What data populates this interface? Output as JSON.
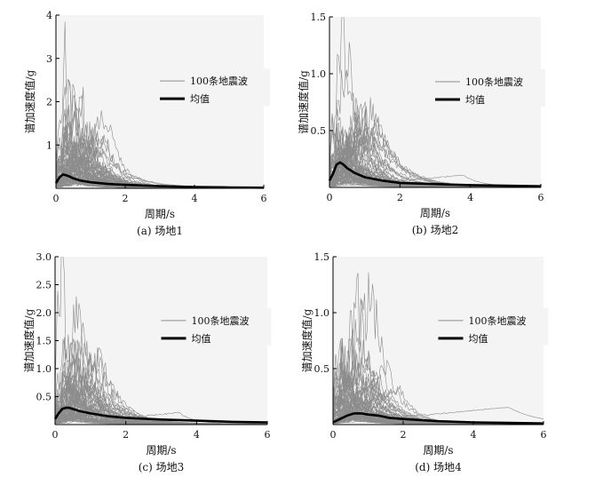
{
  "chart_data": [
    {
      "type": "line",
      "caption": "(a) 场地1",
      "xlabel": "周期/s",
      "ylabel": "谱加速度值/g",
      "xlim": [
        0,
        6
      ],
      "ylim": [
        0,
        4
      ],
      "xticks": [
        "0",
        "2",
        "4",
        "6"
      ],
      "yticks": [
        "1",
        "2",
        "3",
        "4"
      ],
      "legend": {
        "placement": "upper-right",
        "items": [
          "100条地震波",
          "均值"
        ]
      },
      "series": [
        {
          "name": "均值",
          "color": "#000000",
          "x": [
            0,
            0.1,
            0.2,
            0.3,
            0.4,
            0.5,
            0.7,
            1.0,
            1.5,
            2,
            3,
            4,
            5,
            6
          ],
          "values": [
            0.12,
            0.25,
            0.32,
            0.3,
            0.27,
            0.23,
            0.18,
            0.14,
            0.1,
            0.08,
            0.05,
            0.03,
            0.02,
            0.015
          ]
        }
      ],
      "annotation_peaks": [
        {
          "x": 0.25,
          "y": 3.15
        },
        {
          "x": 0.6,
          "y": 2.2
        },
        {
          "x": 1.3,
          "y": 0.9
        },
        {
          "x": 2.3,
          "y": 0.25
        }
      ]
    },
    {
      "type": "line",
      "caption": "(b) 场地2",
      "xlabel": "周期/s",
      "ylabel": "谱加速度值/g",
      "xlim": [
        0,
        6
      ],
      "ylim": [
        0,
        1.5
      ],
      "xticks": [
        "0",
        "2",
        "4",
        "6"
      ],
      "yticks": [
        "0.5",
        "1.0",
        "1.5"
      ],
      "legend": {
        "placement": "upper-right",
        "items": [
          "100条地震波",
          "均值"
        ]
      },
      "series": [
        {
          "name": "均值",
          "color": "#000000",
          "x": [
            0,
            0.1,
            0.2,
            0.3,
            0.4,
            0.5,
            0.7,
            1.0,
            1.5,
            2,
            3,
            4,
            5,
            6
          ],
          "values": [
            0.06,
            0.12,
            0.2,
            0.22,
            0.2,
            0.17,
            0.13,
            0.09,
            0.06,
            0.04,
            0.03,
            0.02,
            0.015,
            0.01
          ]
        }
      ],
      "annotation_peaks": [
        {
          "x": 0.35,
          "y": 1.45
        },
        {
          "x": 0.5,
          "y": 1.3
        },
        {
          "x": 1.0,
          "y": 0.5
        },
        {
          "x": 3.8,
          "y": 0.1
        }
      ]
    },
    {
      "type": "line",
      "caption": "(c) 场地3",
      "xlabel": "周期/s",
      "ylabel": "谱加速度值/g",
      "xlim": [
        0,
        6
      ],
      "ylim": [
        0,
        3.0
      ],
      "xticks": [
        "0",
        "2",
        "4",
        "6"
      ],
      "yticks": [
        "0.5",
        "1.0",
        "1.5",
        "2.0",
        "2.5",
        "3.0"
      ],
      "legend": {
        "placement": "upper-right",
        "items": [
          "100条地震波",
          "均值"
        ]
      },
      "series": [
        {
          "name": "均值",
          "color": "#000000",
          "x": [
            0,
            0.1,
            0.2,
            0.3,
            0.4,
            0.5,
            0.7,
            1.0,
            1.5,
            2,
            3,
            4,
            5,
            6
          ],
          "values": [
            0.1,
            0.2,
            0.28,
            0.3,
            0.3,
            0.28,
            0.24,
            0.2,
            0.15,
            0.12,
            0.09,
            0.07,
            0.05,
            0.04
          ]
        }
      ],
      "annotation_peaks": [
        {
          "x": 0.15,
          "y": 2.8
        },
        {
          "x": 0.6,
          "y": 2.1
        },
        {
          "x": 1.2,
          "y": 1.15
        },
        {
          "x": 3.5,
          "y": 0.2
        }
      ]
    },
    {
      "type": "line",
      "caption": "(d) 场地4",
      "xlabel": "周期/s",
      "ylabel": "谱加速度值/g",
      "xlim": [
        0,
        6
      ],
      "ylim": [
        0,
        1.5
      ],
      "xticks": [
        "0",
        "2",
        "4",
        "6"
      ],
      "yticks": [
        "0.5",
        "1.0",
        "1.5"
      ],
      "legend": {
        "placement": "upper-right",
        "items": [
          "100条地震波",
          "均值"
        ]
      },
      "series": [
        {
          "name": "均值",
          "color": "#000000",
          "x": [
            0,
            0.2,
            0.4,
            0.6,
            0.8,
            1.0,
            1.3,
            1.6,
            2,
            3,
            4,
            5,
            6
          ],
          "values": [
            0.02,
            0.05,
            0.08,
            0.1,
            0.1,
            0.09,
            0.08,
            0.06,
            0.05,
            0.03,
            0.02,
            0.015,
            0.01
          ]
        }
      ],
      "annotation_peaks": [
        {
          "x": 0.7,
          "y": 1.07
        },
        {
          "x": 1.1,
          "y": 1.2
        },
        {
          "x": 1.9,
          "y": 0.32
        },
        {
          "x": 5.0,
          "y": 0.15
        }
      ]
    }
  ]
}
